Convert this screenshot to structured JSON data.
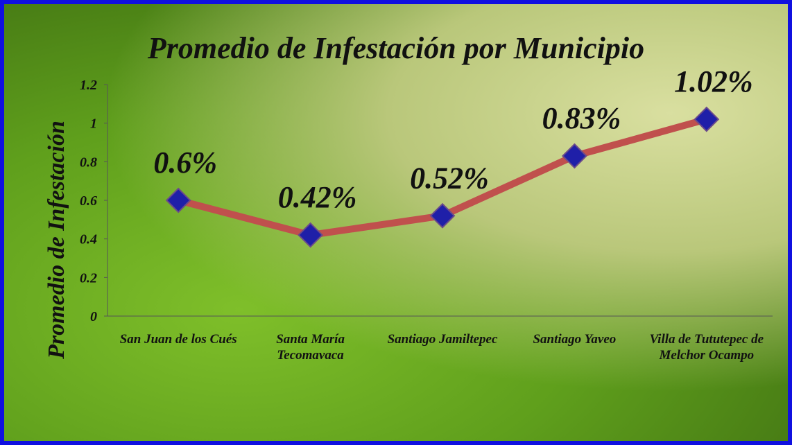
{
  "chart_data": {
    "type": "line",
    "title": "Promedio de Infestación por Municipio",
    "y_label": "Promedio de Infestación",
    "categories": [
      "San Juan de los Cués",
      "Santa María Tecomavaca",
      "Santiago Jamiltepec",
      "Santiago Yaveo",
      "Villa de Tututepec de Melchor Ocampo"
    ],
    "values": [
      0.6,
      0.42,
      0.52,
      0.83,
      1.02
    ],
    "value_labels": [
      "0.6%",
      "0.42%",
      "0.52%",
      "0.83%",
      "1.02%"
    ],
    "color": "#c0504d",
    "marker_color": "#1f1fa8",
    "ylim": [
      0,
      1.2
    ],
    "yticks": [
      0,
      0.2,
      0.4,
      0.6,
      0.8,
      1,
      1.2
    ]
  }
}
